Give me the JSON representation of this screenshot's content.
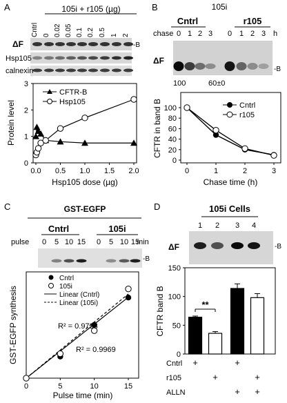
{
  "panels": {
    "A": {
      "letter": "A",
      "header": "105i + r105 (µg)",
      "lane_labels": [
        "Cntrl",
        "0",
        "0.02",
        "0.05",
        "0.1",
        "0.2",
        "0.5",
        "1",
        "2"
      ],
      "blot_rows": [
        "ΔF",
        "Hsp105",
        "calnexin"
      ],
      "band_marker": "-B",
      "chart_data": {
        "type": "line",
        "xlabel": "Hsp105 dose (µg)",
        "ylabel": "Protein level",
        "xlim": [
          0,
          2.0
        ],
        "ylim": [
          0,
          3
        ],
        "xticks": [
          "0.0",
          "0.5",
          "1.0",
          "1.5",
          "2.0"
        ],
        "yticks": [
          "0",
          "1",
          "2",
          "3"
        ],
        "legend_position": "top-left",
        "series": [
          {
            "name": "CFTR-B",
            "marker": "filled-triangle",
            "x": [
              0,
              0.02,
              0.05,
              0.1,
              0.2,
              0.5,
              1,
              2
            ],
            "y": [
              1.0,
              1.35,
              1.2,
              1.1,
              0.85,
              0.8,
              0.75,
              0.75
            ]
          },
          {
            "name": "Hsp105",
            "marker": "open-circle",
            "x": [
              0,
              0.02,
              0.05,
              0.1,
              0.2,
              0.5,
              1,
              2
            ],
            "y": [
              0.3,
              0.4,
              0.55,
              0.75,
              0.85,
              1.3,
              1.7,
              2.4
            ]
          }
        ]
      }
    },
    "B": {
      "letter": "B",
      "header": "105i",
      "group_labels": [
        "Cntrl",
        "r105"
      ],
      "chase_label": "chase",
      "lane_labels": [
        "0",
        "1",
        "2",
        "3",
        "0",
        "1",
        "2",
        "3"
      ],
      "unit": "h",
      "blot_label": "ΔF",
      "band_marker": "-B",
      "quant_labels": [
        "100",
        "60±0"
      ],
      "chart_data": {
        "type": "line",
        "xlabel": "Chase time (h)",
        "ylabel": "CFTR in band B",
        "xlim": [
          0,
          3
        ],
        "ylim": [
          0,
          100
        ],
        "xticks": [
          "0",
          "1",
          "2",
          "3"
        ],
        "yticks": [
          "0",
          "20",
          "40",
          "60",
          "80",
          "100"
        ],
        "legend_position": "top-right",
        "series": [
          {
            "name": "Cntrl",
            "marker": "filled-circle",
            "x": [
              0,
              1,
              2,
              3
            ],
            "y": [
              100,
              48,
              20,
              10
            ]
          },
          {
            "name": "r105",
            "marker": "open-circle",
            "x": [
              0,
              1,
              2,
              3
            ],
            "y": [
              100,
              57,
              22,
              9
            ]
          }
        ]
      }
    },
    "C": {
      "letter": "C",
      "header": "GST-EGFP",
      "group_labels": [
        "Cntrl",
        "105i"
      ],
      "pulse_label": "pulse",
      "lane_labels": [
        "0",
        "5",
        "10",
        "15",
        "0",
        "5",
        "10",
        "15"
      ],
      "unit": "min",
      "band_marker": "-B",
      "chart_data": {
        "type": "scatter",
        "xlabel": "Pulse time (min)",
        "ylabel": "GST-EGFP synthesis",
        "xlim": [
          0,
          15
        ],
        "ylim": [
          0,
          7
        ],
        "xticks": [
          "0",
          "5",
          "10",
          "15"
        ],
        "legend_position": "top-left",
        "series": [
          {
            "name": "Cntrl",
            "marker": "filled-circle",
            "x": [
              0,
              5,
              10,
              15
            ],
            "y": [
              0,
              1.5,
              3.7,
              5.6
            ]
          },
          {
            "name": "105i",
            "marker": "open-circle",
            "x": [
              0,
              5,
              10,
              15
            ],
            "y": [
              0,
              1.7,
              3.3,
              6.2
            ]
          }
        ],
        "fits": [
          {
            "name": "Linear (Cntrl)",
            "style": "solid",
            "slope": 0.375,
            "intercept": 0,
            "r2_label": "R² = 0.9969"
          },
          {
            "name": "Linear (105i)",
            "style": "dashed",
            "slope": 0.39,
            "intercept": 0,
            "r2_label": "R² = 0.9738"
          }
        ]
      }
    },
    "D": {
      "letter": "D",
      "header": "105i Cells",
      "lane_labels": [
        "1",
        "2",
        "3",
        "4"
      ],
      "blot_label": "ΔF",
      "band_marker": "-B",
      "chart_data": {
        "type": "bar",
        "ylabel": "CFTR band B",
        "ylim": [
          0,
          150
        ],
        "yticks": [
          "0",
          "50",
          "100",
          "150"
        ],
        "categories": [
          "1",
          "2",
          "3",
          "4"
        ],
        "values": [
          64,
          36,
          114,
          98
        ],
        "errors": [
          2,
          3,
          8,
          7
        ],
        "fills": [
          "#000000",
          "#ffffff",
          "#000000",
          "#ffffff"
        ],
        "significance": "**",
        "conditions": [
          {
            "name": "Cntrl",
            "marks": [
              "+",
              "",
              "+",
              ""
            ]
          },
          {
            "name": "r105",
            "marks": [
              "",
              "+",
              "",
              "+"
            ]
          },
          {
            "name": "ALLN",
            "marks": [
              "",
              "",
              "+",
              "+"
            ]
          }
        ]
      }
    }
  }
}
